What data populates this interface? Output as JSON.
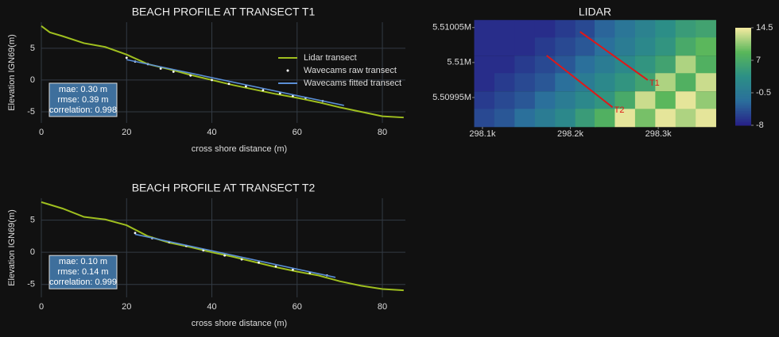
{
  "chart_data": [
    {
      "type": "line",
      "title": "BEACH PROFILE AT TRANSECT T1",
      "xlabel": "cross shore distance (m)",
      "ylabel": "Elevation IGN69(m)",
      "xlim": [
        0,
        85.4
      ],
      "ylim": [
        -6.75,
        9.1
      ],
      "xticks": [
        0,
        20,
        40,
        60,
        80
      ],
      "yticks": [
        -5,
        0,
        5
      ],
      "grid": true,
      "legend": "upper right",
      "series": [
        {
          "name": "Lidar transect",
          "mode": "lines",
          "color": "#9fbf1f",
          "x": [
            0,
            2,
            5,
            10,
            15,
            20,
            25,
            30,
            35,
            40,
            45,
            50,
            55,
            60,
            65,
            70,
            75,
            80,
            85
          ],
          "values": [
            8.5,
            7.5,
            6.9,
            5.8,
            5.2,
            4.0,
            2.5,
            1.7,
            0.8,
            0,
            -0.8,
            -1.5,
            -2.2,
            -2.8,
            -3.5,
            -4.3,
            -5.0,
            -5.7,
            -5.9
          ]
        },
        {
          "name": "Wavecams raw transect",
          "mode": "markers",
          "color": "#ffffff",
          "x": [
            20,
            22,
            25,
            28,
            31,
            35,
            40,
            44,
            48,
            52,
            56,
            59,
            62,
            66
          ],
          "values": [
            3.5,
            2.9,
            2.5,
            1.8,
            1.3,
            0.7,
            0.0,
            -0.6,
            -1.0,
            -1.6,
            -2.1,
            -2.5,
            -2.8,
            -3.3
          ]
        },
        {
          "name": "Wavecams fitted transect",
          "mode": "lines",
          "color": "#5b8fd6",
          "x": [
            20,
            71
          ],
          "values": [
            3.2,
            -4.0
          ]
        }
      ],
      "annotation": [
        "mae: 0.30 m",
        "rmse: 0.39 m",
        "correlation: 0.998"
      ]
    },
    {
      "type": "line",
      "title": "BEACH PROFILE AT TRANSECT T2",
      "xlabel": "cross shore distance (m)",
      "ylabel": "Elevation IGN69(m)",
      "xlim": [
        0,
        85.4
      ],
      "ylim": [
        -7.0,
        8.4
      ],
      "xticks": [
        0,
        20,
        40,
        60,
        80
      ],
      "yticks": [
        -5,
        0,
        5
      ],
      "grid": true,
      "series": [
        {
          "mode": "lines",
          "color": "#9fbf1f",
          "x": [
            0,
            2,
            5,
            10,
            15,
            20,
            25,
            30,
            35,
            40,
            45,
            50,
            55,
            60,
            65,
            70,
            75,
            80,
            85
          ],
          "values": [
            7.8,
            7.4,
            6.8,
            5.5,
            5.1,
            4.2,
            2.5,
            1.5,
            0.8,
            0,
            -0.7,
            -1.5,
            -2.3,
            -3.0,
            -3.6,
            -4.5,
            -5.2,
            -5.7,
            -5.9
          ]
        },
        {
          "mode": "markers",
          "color": "#ffffff",
          "x": [
            22,
            26,
            30,
            34,
            38,
            43,
            47,
            51,
            55,
            59,
            63,
            67
          ],
          "values": [
            3.0,
            2.2,
            1.6,
            1.0,
            0.3,
            -0.5,
            -1.1,
            -1.6,
            -2.2,
            -2.7,
            -3.2,
            -3.6
          ]
        },
        {
          "mode": "lines",
          "color": "#5b8fd6",
          "x": [
            22,
            69
          ],
          "values": [
            2.8,
            -3.9
          ]
        }
      ],
      "annotation": [
        "mae: 0.10 m",
        "rmse: 0.14 m",
        "correlation: 0.999"
      ]
    },
    {
      "type": "heatmap",
      "title": "LIDAR",
      "xlim": [
        298091,
        298365
      ],
      "ylim": [
        5509908,
        5510061
      ],
      "xticks": [
        {
          "value": 298100,
          "label": "298.1k"
        },
        {
          "value": 298200,
          "label": "298.2k"
        },
        {
          "value": 298300,
          "label": "298.3k"
        }
      ],
      "yticks": [
        {
          "value": 5509950,
          "label": "5.50995M"
        },
        {
          "value": 5510000,
          "label": "5.51M"
        },
        {
          "value": 5510050,
          "label": "5.51005M"
        }
      ],
      "x": [
        298102,
        298125,
        298148,
        298171,
        298194,
        298217,
        298239,
        298262,
        298285,
        298308,
        298331,
        298354
      ],
      "y": [
        5510048,
        5510023,
        5509997,
        5509972,
        5509946,
        5509921
      ],
      "z": [
        [
          -7,
          -7,
          -7,
          -7,
          -6,
          -5,
          -3,
          -1,
          1,
          3,
          5,
          6
        ],
        [
          -7,
          -7,
          -7,
          -6,
          -5,
          -4,
          -2,
          0,
          2,
          4,
          7,
          9
        ],
        [
          -7,
          -7,
          -6,
          -5,
          -4,
          -2,
          0,
          2,
          4,
          6,
          12,
          8
        ],
        [
          -7,
          -6,
          -5,
          -4,
          -2,
          0,
          2,
          4,
          6,
          12,
          8,
          13
        ],
        [
          -6,
          -5,
          -4,
          -2,
          0,
          2,
          4,
          7,
          13,
          9,
          14,
          11
        ],
        [
          -5,
          -4,
          -2,
          0,
          2,
          5,
          8,
          14,
          10,
          14,
          12,
          14
        ]
      ],
      "zlim": [
        -8,
        14.5
      ],
      "colorbar_ticks": [
        -8,
        -0.5,
        7,
        14.5
      ],
      "colorscale": [
        "#271f86",
        "#2b6e9c",
        "#2c8f86",
        "#58b65a",
        "#f3eaa0"
      ],
      "lines": [
        {
          "name": "T1",
          "color": "#e01818",
          "x": [
            298211,
            298288
          ],
          "y": [
            5510044,
            5509975
          ]
        },
        {
          "name": "T2",
          "color": "#e01818",
          "x": [
            298173,
            298248
          ],
          "y": [
            5510010,
            5509936
          ]
        }
      ]
    }
  ]
}
